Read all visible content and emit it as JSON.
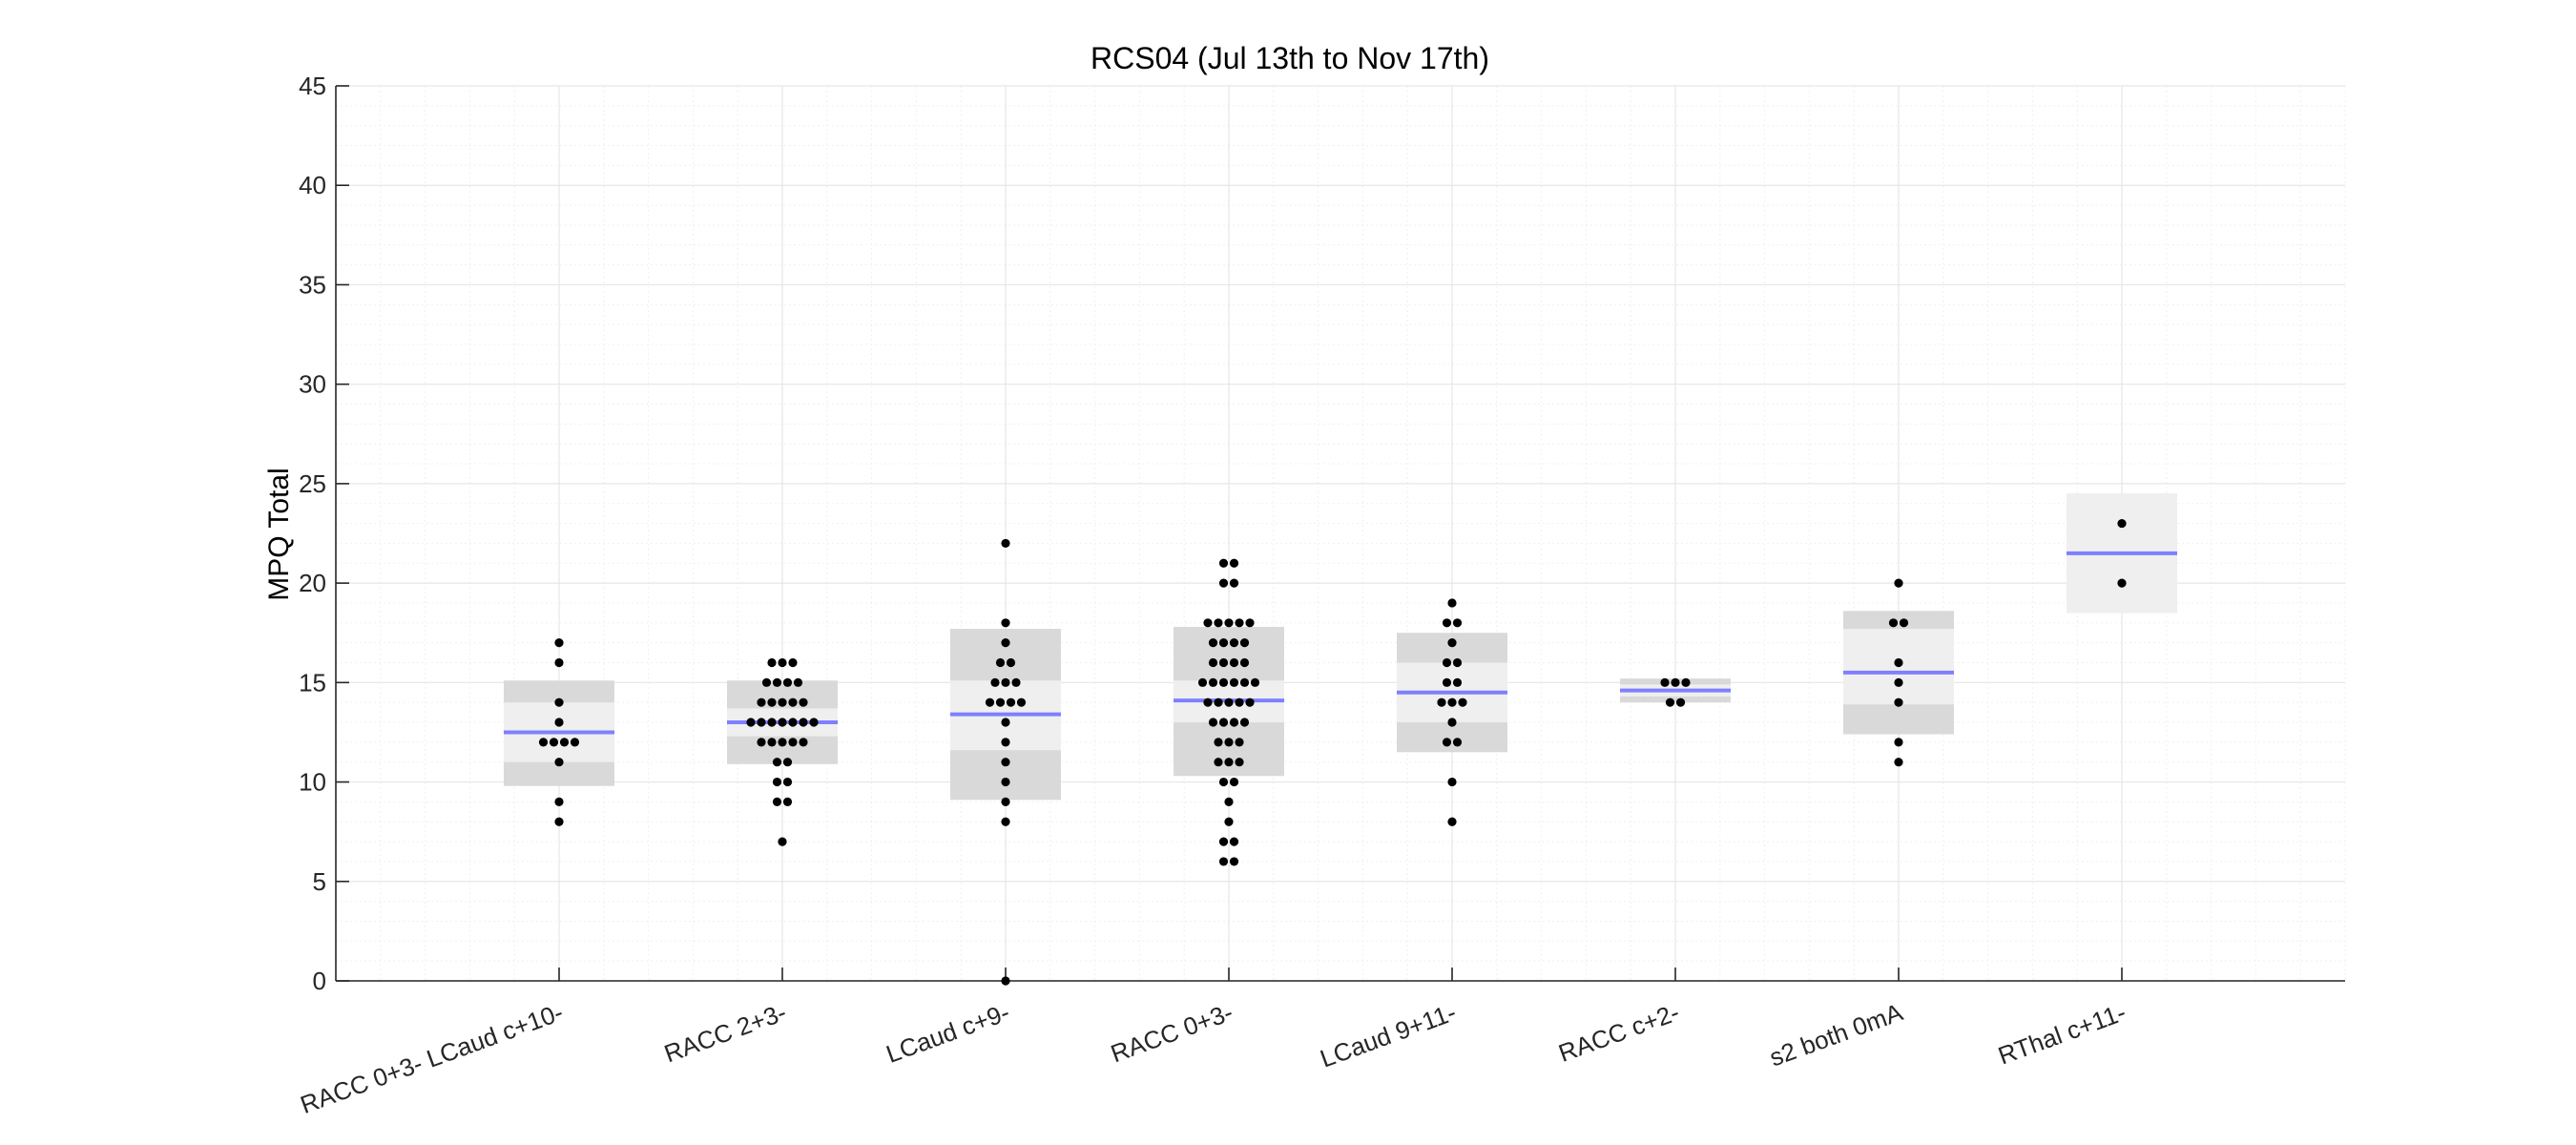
{
  "chart_data": {
    "type": "scatter",
    "subtype": "plotSpread with mean and SEM/SD boxes",
    "title": "RCS04 (Jul 13th to Nov 17th)",
    "xlabel": "",
    "ylabel": "MPQ Total",
    "ylim": [
      0,
      45
    ],
    "xlim": [
      0,
      9
    ],
    "yticks": [
      0,
      5,
      10,
      15,
      20,
      25,
      30,
      35,
      40,
      45
    ],
    "grid": true,
    "categories": [
      "RACC 0+3- LCaud c+10-",
      "RACC 2+3-",
      "LCaud c+9-",
      "RACC 0+3-",
      "LCaud 9+11-",
      "RACC c+2-",
      "s2 both 0mA",
      "RThal c+11-"
    ],
    "groups": [
      {
        "category": "RACC 0+3- LCaud c+10-",
        "mean": 12.5,
        "sd_range": [
          9.8,
          15.1
        ],
        "sem_range": [
          11.0,
          14.0
        ],
        "points": [
          8,
          9,
          11,
          12,
          12,
          12,
          12,
          13,
          14,
          16,
          17
        ]
      },
      {
        "category": "RACC 2+3-",
        "mean": 13.0,
        "sd_range": [
          10.9,
          15.1
        ],
        "sem_range": [
          12.3,
          13.7
        ],
        "points": [
          7,
          9,
          9,
          10,
          10,
          11,
          11,
          12,
          12,
          12,
          12,
          12,
          13,
          13,
          13,
          13,
          13,
          13,
          13,
          14,
          14,
          14,
          14,
          14,
          15,
          15,
          15,
          15,
          16,
          16,
          16
        ]
      },
      {
        "category": "LCaud c+9-",
        "mean": 13.4,
        "sd_range": [
          9.1,
          17.7
        ],
        "sem_range": [
          11.6,
          15.1
        ],
        "points": [
          0,
          8,
          9,
          10,
          11,
          12,
          13,
          14,
          14,
          14,
          14,
          15,
          15,
          15,
          16,
          16,
          17,
          18,
          22
        ]
      },
      {
        "category": "RACC 0+3-",
        "mean": 14.1,
        "sd_range": [
          10.3,
          17.8
        ],
        "sem_range": [
          13.0,
          15.1
        ],
        "points": [
          6,
          6,
          7,
          7,
          8,
          9,
          10,
          10,
          11,
          11,
          11,
          12,
          12,
          12,
          13,
          13,
          13,
          13,
          14,
          14,
          14,
          14,
          14,
          15,
          15,
          15,
          15,
          15,
          15,
          16,
          16,
          16,
          16,
          17,
          17,
          17,
          17,
          18,
          18,
          18,
          18,
          18,
          20,
          20,
          21,
          21
        ]
      },
      {
        "category": "LCaud 9+11-",
        "mean": 14.5,
        "sd_range": [
          11.5,
          17.5
        ],
        "sem_range": [
          13.0,
          16.0
        ],
        "points": [
          8,
          10,
          12,
          12,
          13,
          14,
          14,
          14,
          15,
          15,
          16,
          16,
          17,
          18,
          18,
          19
        ]
      },
      {
        "category": "RACC c+2-",
        "mean": 14.6,
        "sd_range": [
          14.0,
          15.2
        ],
        "sem_range": [
          14.3,
          14.9
        ],
        "points": [
          14,
          14,
          15,
          15,
          15
        ]
      },
      {
        "category": "s2 both 0mA",
        "mean": 15.5,
        "sd_range": [
          12.4,
          18.6
        ],
        "sem_range": [
          13.9,
          17.7
        ],
        "points": [
          11,
          12,
          14,
          15,
          16,
          18,
          18,
          20
        ]
      },
      {
        "category": "RThal c+11-",
        "mean": 21.5,
        "sd_range": [
          18.5,
          24.5
        ],
        "sem_range": [
          18.5,
          24.5
        ],
        "points": [
          20,
          23
        ]
      }
    ],
    "colors": {
      "points": "#000000",
      "mean_line": "#7f7fff",
      "sd_box": "#d9d9d9",
      "sem_box": "#efefef",
      "grid": "#e6e6e6",
      "axis": "#262626"
    }
  }
}
